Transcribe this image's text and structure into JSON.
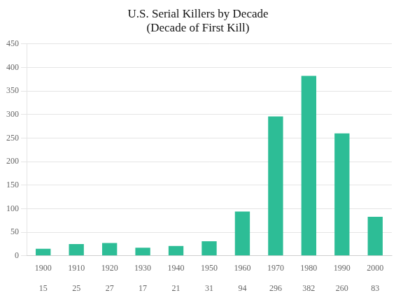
{
  "chart_data": {
    "type": "bar",
    "title": "U.S. Serial Killers by Decade\n(Decade of First Kill)",
    "categories": [
      "1900",
      "1910",
      "1920",
      "1930",
      "1940",
      "1950",
      "1960",
      "1970",
      "1980",
      "1990",
      "2000"
    ],
    "values": [
      15,
      25,
      27,
      17,
      21,
      31,
      94,
      296,
      382,
      260,
      83
    ],
    "color": "#2DBD96",
    "ylim": [
      0,
      450
    ],
    "yticks": [
      0,
      50,
      100,
      150,
      200,
      250,
      300,
      350,
      400,
      450
    ],
    "grid": true,
    "data_labels": true
  }
}
